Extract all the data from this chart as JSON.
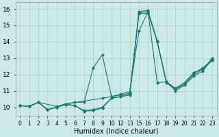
{
  "xlabel": "Humidex (Indice chaleur)",
  "background_color": "#cce8e8",
  "line_color": "#1a7a6e",
  "grid_color": "#aacccc",
  "ylim": [
    9.5,
    16.4
  ],
  "yticks": [
    10,
    11,
    12,
    13,
    14,
    15,
    16
  ],
  "xtick_labels": [
    "0",
    "1",
    "2",
    "3",
    "4",
    "5",
    "6",
    "7",
    "8",
    "9",
    "10",
    "12",
    "13",
    "15",
    "16",
    "17",
    "18",
    "19",
    "20",
    "21",
    "22",
    "23"
  ],
  "lines": [
    {
      "xi": [
        0,
        1,
        2,
        3,
        4,
        5,
        6,
        7,
        8,
        9,
        10,
        11,
        12,
        13,
        14,
        15,
        16,
        17,
        18,
        19,
        20,
        21
      ],
      "y": [
        10.1,
        10.05,
        10.3,
        9.85,
        10.0,
        10.2,
        10.1,
        9.8,
        9.85,
        10.0,
        10.55,
        10.65,
        10.75,
        15.85,
        15.9,
        14.0,
        11.55,
        11.15,
        11.5,
        12.1,
        12.4,
        12.9
      ]
    },
    {
      "xi": [
        0,
        1,
        2,
        3,
        4,
        5,
        6,
        7,
        8,
        9,
        10,
        11,
        12,
        13,
        14,
        15,
        16,
        17,
        18,
        19,
        20,
        21
      ],
      "y": [
        10.1,
        10.05,
        10.3,
        9.85,
        10.0,
        10.2,
        10.3,
        10.3,
        12.4,
        13.2,
        10.65,
        10.8,
        10.95,
        14.65,
        15.85,
        11.5,
        11.55,
        11.0,
        11.35,
        11.9,
        12.2,
        13.0
      ]
    },
    {
      "xi": [
        0,
        1,
        2,
        4,
        5,
        9,
        10,
        11,
        12,
        13,
        14,
        15,
        16,
        17,
        18,
        19,
        20,
        21
      ],
      "y": [
        10.1,
        10.05,
        10.3,
        10.05,
        10.2,
        10.55,
        10.65,
        10.75,
        10.85,
        15.75,
        15.85,
        14.05,
        11.55,
        11.15,
        11.5,
        12.1,
        12.35,
        12.85
      ]
    },
    {
      "xi": [
        0,
        1,
        2,
        3,
        4,
        5,
        6,
        7,
        8,
        9,
        10,
        11,
        12,
        13,
        14,
        15,
        16,
        17,
        18,
        19,
        20,
        21
      ],
      "y": [
        10.1,
        10.05,
        10.3,
        9.85,
        10.0,
        10.15,
        10.1,
        9.75,
        9.8,
        9.95,
        10.55,
        10.65,
        10.8,
        15.7,
        15.75,
        14.0,
        11.5,
        11.1,
        11.4,
        12.0,
        12.3,
        12.85
      ]
    }
  ]
}
